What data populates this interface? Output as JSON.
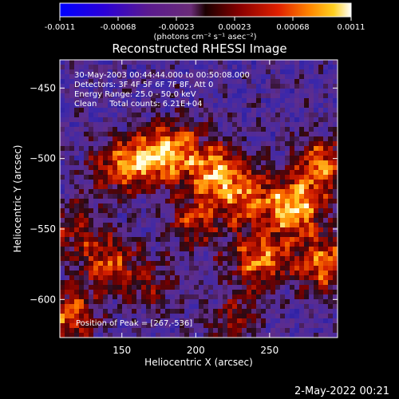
{
  "chart_data": {
    "type": "heatmap",
    "title": "Reconstructed RHESSI Image",
    "xlabel": "Heliocentric X (arcsec)",
    "ylabel": "Heliocentric Y (arcsec)",
    "xlim": [
      108,
      296
    ],
    "ylim": [
      -627,
      -430
    ],
    "x_ticks": [
      150,
      200,
      250
    ],
    "x_tick_labels": [
      "150",
      "200",
      "250"
    ],
    "y_ticks": [
      -450,
      -500,
      -550,
      -600
    ],
    "y_tick_labels": [
      "-450",
      "-500",
      "-550",
      "-600"
    ],
    "colorbar": {
      "range": [
        -0.0011,
        0.0011
      ],
      "tick_labels": [
        "-0.0011",
        "-0.00068",
        "-0.00023",
        "0.00023",
        "0.00068",
        "0.0011"
      ],
      "unit_label": "(photons cm⁻² s⁻¹ asec⁻²)"
    },
    "annotations": [
      "30-May-2003 00:44:44.000 to 00:50:08.000",
      "Detectors: 3F 4F 5F 6F 7F 8F, Att 0",
      "Energy Range: 25.0 - 50.0 keV",
      "Clean     Total counts: 6.21E+04"
    ],
    "peak_label": "Position of Peak = [267,-536]",
    "peak_position": [
      267,
      -536
    ],
    "bright_regions": [
      {
        "x": 140,
        "y": -575,
        "value": 0.00075
      },
      {
        "x": 145,
        "y": -506,
        "value": 0.0006
      },
      {
        "x": 166,
        "y": -502,
        "value": 0.00085
      },
      {
        "x": 186,
        "y": -492,
        "value": 0.0008
      },
      {
        "x": 214,
        "y": -510,
        "value": 0.00105
      },
      {
        "x": 200,
        "y": -545,
        "value": 0.00065
      },
      {
        "x": 236,
        "y": -528,
        "value": 0.00075
      },
      {
        "x": 243,
        "y": -572,
        "value": 0.00095
      },
      {
        "x": 267,
        "y": -536,
        "value": 0.0011
      },
      {
        "x": 285,
        "y": -505,
        "value": 0.0009
      },
      {
        "x": 288,
        "y": -575,
        "value": 0.00095
      },
      {
        "x": 112,
        "y": -612,
        "value": 0.0009
      },
      {
        "x": 118,
        "y": -548,
        "value": 0.00055
      },
      {
        "x": 225,
        "y": -615,
        "value": 0.0005
      },
      {
        "x": 168,
        "y": -590,
        "value": 0.00045
      }
    ],
    "grid": false
  },
  "footer": {
    "date_label": "2-May-2022 00:21"
  }
}
